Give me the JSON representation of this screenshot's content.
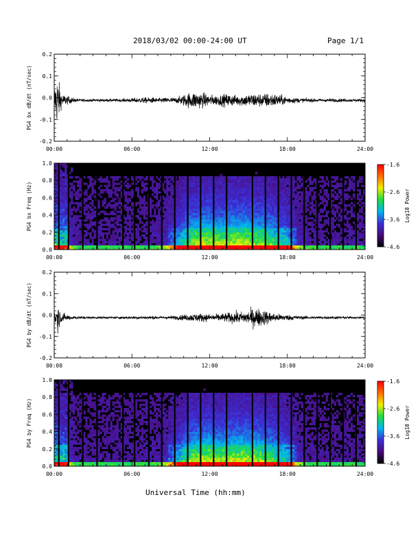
{
  "header": {
    "title": "2018/03/02  00:00-24:00 UT",
    "page": "Page 1/1"
  },
  "footer": {
    "xlabel": "Universal Time (hh:mm)"
  },
  "colors": {
    "background": "#ffffff",
    "trace": "#000000",
    "colorscale": [
      "#000000",
      "#4b0a7a",
      "#3c2fd8",
      "#00b8f0",
      "#22dc44",
      "#f0f000",
      "#ff7000",
      "#ff0000"
    ]
  },
  "chart_data": [
    {
      "id": "bx-waveform",
      "type": "line",
      "ylabel": "PG4 bx dB/dt (nT/sec)",
      "xlim": [
        0,
        24
      ],
      "ylim": [
        -0.2,
        0.2
      ],
      "xticks": [
        "00:00",
        "06:00",
        "12:00",
        "18:00",
        "24:00"
      ],
      "yticks": [
        "0.2",
        "0.1",
        "0.0",
        "-0.1",
        "-0.2"
      ],
      "envelope": {
        "hours": [
          0,
          0.25,
          0.5,
          0.75,
          1,
          1.5,
          2,
          3,
          4,
          5,
          5.5,
          6,
          7,
          7.5,
          8,
          9,
          9.5,
          10,
          10.5,
          11,
          11.5,
          12,
          12.5,
          13,
          13.5,
          14,
          14.5,
          15,
          15.5,
          16,
          16.5,
          17,
          17.5,
          18,
          18.5,
          19,
          20,
          21,
          22,
          23,
          24
        ],
        "amplitude": [
          0.09,
          0.18,
          0.06,
          0.04,
          0.03,
          0.015,
          0.01,
          0.01,
          0.01,
          0.01,
          0.012,
          0.015,
          0.02,
          0.02,
          0.015,
          0.02,
          0.02,
          0.04,
          0.055,
          0.06,
          0.05,
          0.04,
          0.035,
          0.04,
          0.045,
          0.035,
          0.04,
          0.045,
          0.05,
          0.045,
          0.05,
          0.045,
          0.035,
          0.025,
          0.02,
          0.015,
          0.012,
          0.012,
          0.012,
          0.01,
          0.01
        ]
      }
    },
    {
      "id": "bx-spectrogram",
      "type": "heatmap",
      "ylabel": "PG4 bx Freq (Hz)",
      "xlim": [
        0,
        24
      ],
      "ylim": [
        0,
        1.0
      ],
      "xticks": [
        "00:00",
        "06:00",
        "12:00",
        "18:00",
        "24:00"
      ],
      "yticks": [
        "1.0",
        "0.8",
        "0.6",
        "0.4",
        "0.2",
        "0.0"
      ],
      "colorbar": {
        "label": "Log10 Power",
        "range": [
          -4.6,
          -1.6
        ],
        "ticks": [
          "-1.6",
          "-2.6",
          "-3.6",
          "-4.6"
        ]
      },
      "gap_hours": [
        0.35,
        1.1,
        2.2,
        3.3,
        5.3,
        6.2,
        7.3,
        8.3,
        9.3,
        10.3,
        11.3,
        12.3,
        13.3,
        15.3,
        16.3,
        17.3,
        18.3,
        19.3,
        20.3,
        21.3,
        22.3,
        23.3
      ]
    },
    {
      "id": "by-waveform",
      "type": "line",
      "ylabel": "PG4 by dB/dt (nT/sec)",
      "xlim": [
        0,
        24
      ],
      "ylim": [
        -0.2,
        0.2
      ],
      "xticks": [
        "00:00",
        "06:00",
        "12:00",
        "18:00",
        "24:00"
      ],
      "yticks": [
        "0.2",
        "0.1",
        "0.0",
        "-0.1",
        "-0.2"
      ],
      "envelope": {
        "hours": [
          0,
          0.25,
          0.5,
          0.75,
          1,
          1.5,
          2,
          3,
          4,
          5,
          5.5,
          6,
          7,
          7.5,
          8,
          9,
          9.5,
          10,
          10.5,
          11,
          11.5,
          12,
          12.5,
          13,
          13.5,
          14,
          14.5,
          15,
          15.5,
          16,
          16.5,
          17,
          17.5,
          18,
          18.5,
          19,
          20,
          21,
          22,
          23,
          24
        ],
        "amplitude": [
          0.05,
          0.1,
          0.04,
          0.03,
          0.02,
          0.012,
          0.01,
          0.008,
          0.008,
          0.008,
          0.01,
          0.01,
          0.012,
          0.012,
          0.01,
          0.012,
          0.015,
          0.02,
          0.025,
          0.03,
          0.028,
          0.025,
          0.025,
          0.03,
          0.035,
          0.04,
          0.04,
          0.05,
          0.07,
          0.06,
          0.045,
          0.03,
          0.025,
          0.02,
          0.018,
          0.012,
          0.01,
          0.01,
          0.01,
          0.008,
          0.008
        ]
      }
    },
    {
      "id": "by-spectrogram",
      "type": "heatmap",
      "ylabel": "PG4 by Freq (Hz)",
      "xlim": [
        0,
        24
      ],
      "ylim": [
        0,
        1.0
      ],
      "xticks": [
        "00:00",
        "06:00",
        "12:00",
        "18:00",
        "24:00"
      ],
      "yticks": [
        "1.0",
        "0.8",
        "0.6",
        "0.4",
        "0.2",
        "0.0"
      ],
      "colorbar": {
        "label": "Log10 Power",
        "range": [
          -4.6,
          -1.6
        ],
        "ticks": [
          "-1.6",
          "-2.6",
          "-3.6",
          "-4.6"
        ]
      },
      "gap_hours": [
        0.35,
        1.1,
        2.2,
        3.3,
        5.3,
        6.2,
        7.3,
        8.3,
        9.3,
        10.3,
        11.3,
        12.3,
        13.3,
        15.3,
        16.3,
        17.3,
        18.3,
        19.3,
        20.3,
        21.3,
        22.3,
        23.3
      ]
    }
  ]
}
